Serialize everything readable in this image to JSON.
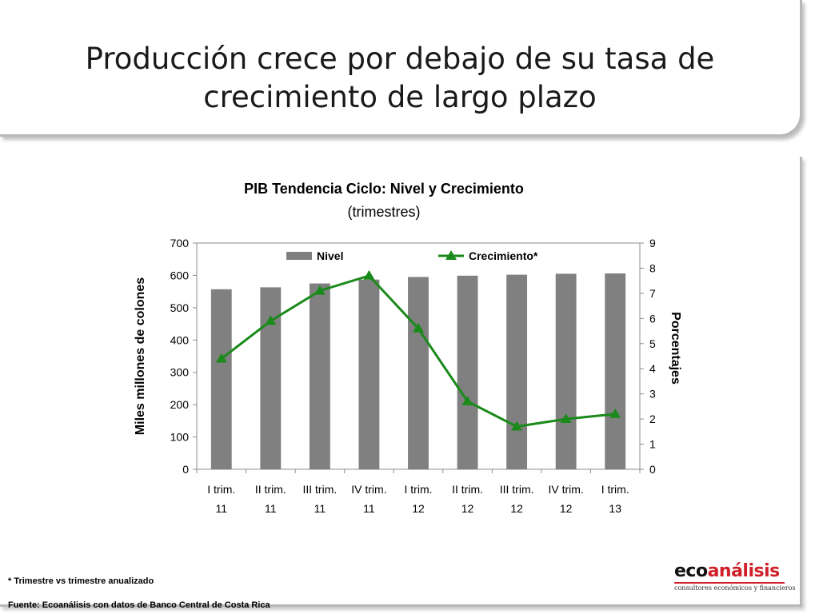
{
  "slide": {
    "title_line1": "Producción crece por debajo de su tasa de",
    "title_line2": "crecimiento de largo plazo",
    "footnote": "* Trimestre vs trimestre anualizado",
    "source": "Fuente: Ecoanálisis con datos de Banco  Central de Costa Rica"
  },
  "logo": {
    "eco": "eco",
    "analisis": "análisis",
    "tagline": "consultores económicos y financieros",
    "accent_color": "#d0202a"
  },
  "chart_data": {
    "type": "bar+line",
    "title": "PIB Tendencia Ciclo: Nivel y Crecimiento",
    "subtitle": "(trimestres)",
    "ylabel_left": "Miles millones de colones",
    "ylabel_right": "Porcentajes",
    "categories": [
      [
        "I trim.",
        "11"
      ],
      [
        "II trim.",
        "11"
      ],
      [
        "III trim.",
        "11"
      ],
      [
        "IV trim.",
        "11"
      ],
      [
        "I trim.",
        "12"
      ],
      [
        "II trim.",
        "12"
      ],
      [
        "III trim.",
        "12"
      ],
      [
        "IV trim.",
        "12"
      ],
      [
        "I trim.",
        "13"
      ]
    ],
    "ylim_left": [
      0,
      700
    ],
    "yticks_left": [
      "0",
      "100",
      "200",
      "300",
      "400",
      "500",
      "600",
      "700"
    ],
    "ylim_right": [
      0,
      9
    ],
    "yticks_right": [
      "0",
      "1",
      "2",
      "3",
      "4",
      "5",
      "6",
      "7",
      "8",
      "9"
    ],
    "series": [
      {
        "name": "Nivel",
        "kind": "bar",
        "axis": "left",
        "color": "#808080",
        "values": [
          557,
          563,
          575,
          587,
          595,
          599,
          602,
          605,
          606
        ]
      },
      {
        "name": "Crecimiento*",
        "kind": "line",
        "axis": "right",
        "color": "#1a8a1a",
        "values": [
          4.4,
          5.9,
          7.1,
          7.7,
          5.6,
          2.7,
          1.7,
          2.0,
          2.2
        ]
      }
    ],
    "legend_position": "top",
    "grid": false
  }
}
